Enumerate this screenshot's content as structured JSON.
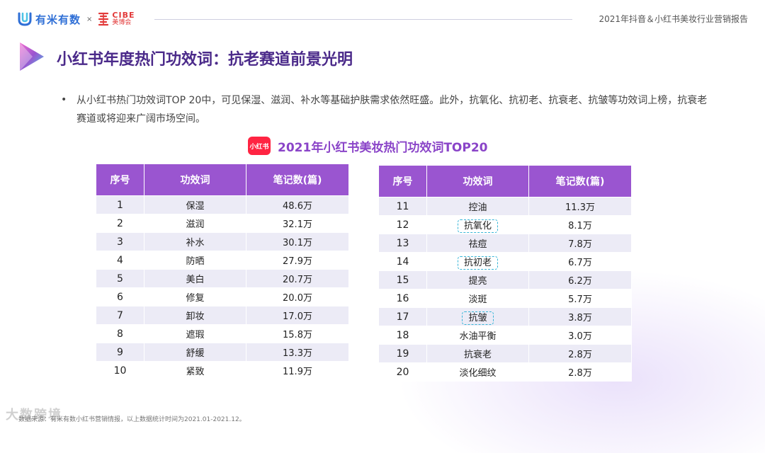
{
  "header": {
    "brand_left": "有米有数",
    "times": "×",
    "brand_right_en": "CIBE",
    "brand_right_zh": "美博会",
    "report_title": "2021年抖音＆小红书美妆行业营销报告"
  },
  "page_title": "小红书年度热门功效词：抗老赛道前景光明",
  "paragraph": "从小红书热门功效词TOP 20中，可见保湿、滋润、补水等基础护肤需求依然旺盛。此外，抗氧化、抗初老、抗衰老、抗皱等功效词上榜，抗衰老赛道或将迎来广阔市场空间。",
  "bullet": "•",
  "table_title": "2021年小红书美妆热门功效词TOP20",
  "xhs_badge": "小红书",
  "columns": [
    "序号",
    "功效词",
    "笔记数(篇)"
  ],
  "rows_left": [
    {
      "rank": "1",
      "word": "保湿",
      "count": "48.6万"
    },
    {
      "rank": "2",
      "word": "滋润",
      "count": "32.1万"
    },
    {
      "rank": "3",
      "word": "补水",
      "count": "30.1万"
    },
    {
      "rank": "4",
      "word": "防晒",
      "count": "27.9万"
    },
    {
      "rank": "5",
      "word": "美白",
      "count": "20.7万"
    },
    {
      "rank": "6",
      "word": "修复",
      "count": "20.0万"
    },
    {
      "rank": "7",
      "word": "卸妆",
      "count": "17.0万"
    },
    {
      "rank": "8",
      "word": "遮瑕",
      "count": "15.8万"
    },
    {
      "rank": "9",
      "word": "舒缓",
      "count": "13.3万"
    },
    {
      "rank": "10",
      "word": "紧致",
      "count": "11.9万"
    }
  ],
  "rows_right": [
    {
      "rank": "11",
      "word": "控油",
      "count": "11.3万"
    },
    {
      "rank": "12",
      "word": "抗氧化",
      "count": "8.1万"
    },
    {
      "rank": "13",
      "word": "祛痘",
      "count": "7.8万"
    },
    {
      "rank": "14",
      "word": "抗初老",
      "count": "6.7万"
    },
    {
      "rank": "15",
      "word": "提亮",
      "count": "6.2万"
    },
    {
      "rank": "16",
      "word": "淡斑",
      "count": "5.7万"
    },
    {
      "rank": "17",
      "word": "抗皱",
      "count": "3.8万"
    },
    {
      "rank": "18",
      "word": "水油平衡",
      "count": "3.0万"
    },
    {
      "rank": "19",
      "word": "抗衰老",
      "count": "2.8万"
    },
    {
      "rank": "20",
      "word": "淡化细纹",
      "count": "2.8万"
    }
  ],
  "footer": "数据来源：有米有数小红书营销情报，以上数据统计时间为2021.01-2021.12。",
  "watermark": "大数跨境"
}
